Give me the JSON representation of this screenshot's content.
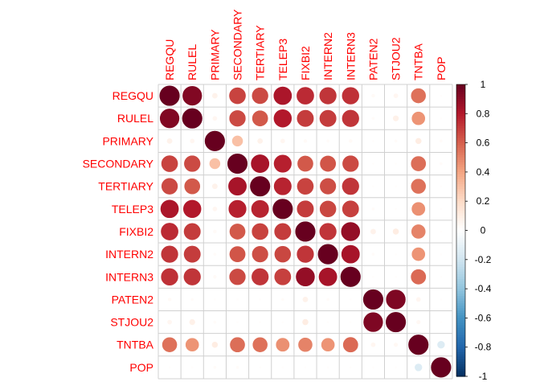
{
  "chart_data": {
    "type": "heatmap",
    "style": "corrplot-circle",
    "variables": [
      "REGQU",
      "RULEL",
      "PRIMARY",
      "SECONDARY",
      "TERTIARY",
      "TELEP3",
      "FIXBI2",
      "INTERN2",
      "INTERN3",
      "PATEN2",
      "STJOU2",
      "TNTBA",
      "POP"
    ],
    "matrix": [
      [
        1.0,
        0.93,
        0.07,
        0.68,
        0.66,
        0.82,
        0.75,
        0.72,
        0.73,
        0.03,
        0.05,
        0.55,
        0.01
      ],
      [
        0.93,
        1.0,
        0.05,
        0.66,
        0.62,
        0.8,
        0.7,
        0.7,
        0.72,
        0.02,
        0.08,
        0.45,
        0.01
      ],
      [
        0.07,
        0.05,
        1.0,
        0.3,
        0.07,
        0.05,
        0.03,
        0.02,
        0.03,
        0.01,
        0.02,
        0.1,
        0.02
      ],
      [
        0.68,
        0.66,
        0.3,
        1.0,
        0.83,
        0.78,
        0.62,
        0.63,
        0.66,
        0.01,
        0.01,
        0.56,
        0.02
      ],
      [
        0.66,
        0.62,
        0.07,
        0.83,
        1.0,
        0.77,
        0.68,
        0.65,
        0.72,
        0.01,
        0.01,
        0.55,
        0.01
      ],
      [
        0.82,
        0.8,
        0.05,
        0.78,
        0.77,
        1.0,
        0.7,
        0.67,
        0.69,
        0.02,
        0.01,
        0.46,
        0.01
      ],
      [
        0.75,
        0.7,
        0.03,
        0.62,
        0.68,
        0.7,
        1.0,
        0.72,
        0.88,
        0.07,
        0.1,
        0.5,
        0.01
      ],
      [
        0.72,
        0.7,
        0.02,
        0.63,
        0.65,
        0.67,
        0.72,
        1.0,
        0.83,
        0.02,
        0.01,
        0.45,
        0.01
      ],
      [
        0.73,
        0.72,
        0.03,
        0.66,
        0.72,
        0.69,
        0.88,
        0.83,
        1.0,
        0.01,
        0.01,
        0.57,
        0.01
      ],
      [
        0.03,
        0.02,
        0.01,
        0.01,
        0.01,
        0.02,
        0.07,
        0.02,
        0.01,
        1.0,
        0.94,
        0.05,
        0.01
      ],
      [
        0.05,
        0.08,
        0.02,
        0.01,
        0.01,
        0.01,
        0.1,
        0.01,
        0.01,
        0.94,
        1.0,
        0.04,
        0.01
      ],
      [
        0.55,
        0.45,
        0.1,
        0.56,
        0.55,
        0.46,
        0.5,
        0.45,
        0.57,
        0.05,
        0.04,
        1.0,
        -0.15
      ],
      [
        0.01,
        0.01,
        0.02,
        0.02,
        0.01,
        0.01,
        0.01,
        0.01,
        0.01,
        0.01,
        0.01,
        -0.15,
        1.0
      ]
    ],
    "color_scale": {
      "range": [
        -1,
        1
      ],
      "ticks": [
        "1",
        "0.8",
        "0.6",
        "0.4",
        "0.2",
        "0",
        "-0.2",
        "-0.4",
        "-0.6",
        "-0.8",
        "-1"
      ],
      "colors": [
        "#67001F",
        "#B2182B",
        "#D6604D",
        "#F4A582",
        "#FDDBC7",
        "#FFFFFF",
        "#D1E5F0",
        "#92C5DE",
        "#4393C3",
        "#2166AC",
        "#053061"
      ]
    },
    "label_color": "#FF0000",
    "grid": true,
    "legend": "right"
  }
}
